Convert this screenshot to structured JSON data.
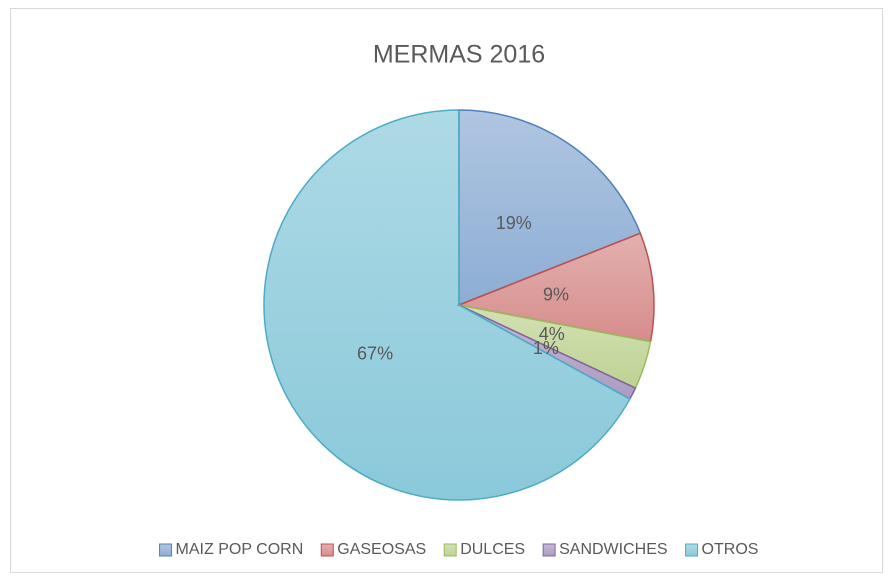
{
  "chart_data": {
    "type": "pie",
    "title": "MERMAS 2016",
    "categories": [
      "MAIZ POP CORN",
      "GASEOSAS",
      "DULCES",
      "SANDWICHES",
      "OTROS"
    ],
    "values": [
      19,
      9,
      4,
      1,
      67
    ],
    "value_labels": [
      "19%",
      "9%",
      "4%",
      "1%",
      "67%"
    ],
    "colors": [
      "#4f81bd",
      "#c0504d",
      "#9bbb59",
      "#8064a2",
      "#4bacc6"
    ],
    "legend": "bottom"
  }
}
